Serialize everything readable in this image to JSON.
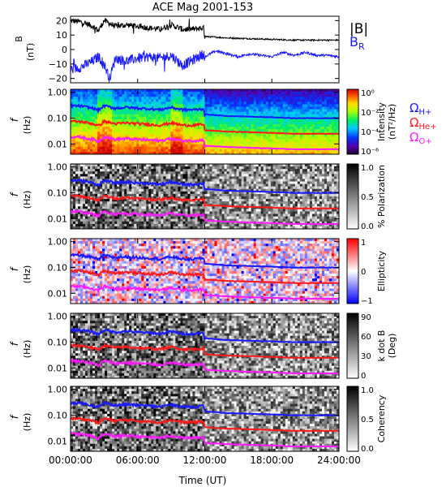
{
  "title": "ACE Mag 2001-153",
  "x_axis": {
    "label": "Time (UT)",
    "ticks": [
      "00:00:00",
      "06:00:00",
      "12:00:00",
      "18:00:00",
      "24:00:00"
    ]
  },
  "top_panel": {
    "ylabel_line1": "B",
    "ylabel_line2": "(nT)",
    "yticks": [
      "20",
      "10",
      "0",
      "−10",
      "−20"
    ],
    "legend_b": "|B|",
    "legend_br": "B",
    "legend_br_sub": "R"
  },
  "spectral_panels": [
    {
      "id": "intensity",
      "ylabel_line1": "f",
      "ylabel_line2": "(Hz)",
      "yticks": [
        "1.00",
        "0.10",
        "0.01"
      ],
      "cbar_label": "Intensity",
      "cbar_unit": "(nT²/Hz)",
      "cbar_ticks": [
        "10⁰",
        "10⁻²",
        "10⁻⁴",
        "10⁻⁶"
      ]
    },
    {
      "id": "polarization",
      "ylabel_line1": "f",
      "ylabel_line2": "(Hz)",
      "yticks": [
        "1.00",
        "0.10",
        "0.01"
      ],
      "cbar_label": "% Polarization",
      "cbar_unit": "",
      "cbar_ticks": [
        "1.0",
        "0.5",
        "0.0"
      ]
    },
    {
      "id": "ellipticity",
      "ylabel_line1": "f",
      "ylabel_line2": "(Hz)",
      "yticks": [
        "1.00",
        "0.10",
        "0.01"
      ],
      "cbar_label": "Ellipticity",
      "cbar_unit": "",
      "cbar_ticks": [
        "1",
        "0",
        "−1"
      ]
    },
    {
      "id": "kdotb",
      "ylabel_line1": "f",
      "ylabel_line2": "(Hz)",
      "yticks": [
        "1.00",
        "0.10",
        "0.01"
      ],
      "cbar_label": "k dot B",
      "cbar_unit": "(Deg)",
      "cbar_ticks": [
        "90",
        "60",
        "30",
        "0"
      ]
    },
    {
      "id": "coherency",
      "ylabel_line1": "f",
      "ylabel_line2": "(Hz)",
      "yticks": [
        "1.00",
        "0.10",
        "0.01"
      ],
      "cbar_label": "Coherency",
      "cbar_unit": "",
      "cbar_ticks": [
        "1.0",
        "0.5",
        "0.0"
      ]
    }
  ],
  "gyro_legend": [
    {
      "symbol": "Ω",
      "sub": "H+",
      "color": "#1a1aff"
    },
    {
      "symbol": "Ω",
      "sub": "He+",
      "color": "#ff1a1a"
    },
    {
      "symbol": "Ω",
      "sub": "O+",
      "color": "#ff1aff"
    }
  ],
  "colors": {
    "b_magnitude": "#000000",
    "b_radial": "#1a1aff",
    "h_plus": "#1a1aff",
    "he_plus": "#ff1a1a",
    "o_plus": "#ff1aff"
  },
  "chart_data": [
    {
      "type": "line",
      "title": "ACE Mag 2001-153",
      "xlabel": "Time (UT)",
      "ylabel": "B (nT)",
      "xlim": [
        0,
        24
      ],
      "ylim": [
        -23,
        23
      ],
      "series": [
        {
          "name": "|B|",
          "x": [
            0,
            1,
            2,
            2.5,
            3,
            4,
            5,
            6,
            7,
            8,
            9,
            10,
            11,
            11.9,
            12,
            14,
            16,
            18,
            20,
            22,
            24
          ],
          "y": [
            20,
            19,
            16,
            13,
            20,
            16,
            17,
            16,
            15,
            14,
            17,
            14,
            14,
            15,
            9,
            8,
            7.5,
            7,
            6.5,
            6.5,
            6.5
          ]
        },
        {
          "name": "B_R",
          "x": [
            0,
            1,
            2,
            2.5,
            3,
            3.5,
            4,
            5,
            6,
            7,
            8,
            9,
            10,
            11,
            11.9,
            12,
            13,
            14,
            15,
            16,
            17,
            18,
            19,
            20,
            21,
            22,
            23,
            24
          ],
          "y": [
            -14,
            -12,
            -8,
            -5,
            -10,
            -20,
            -6,
            -8,
            -6,
            -5,
            -6,
            -4,
            -11,
            -7,
            -3,
            -5,
            -1,
            -3,
            -5,
            -3,
            -4,
            -5,
            -2,
            -4,
            -2,
            -4,
            -4,
            -5
          ]
        }
      ]
    },
    {
      "type": "heatmap",
      "name": "gyrofrequency overlays (shared by the five spectral panels)",
      "x_unit": "hours UT",
      "xlim": [
        0,
        24
      ],
      "y_unit": "Hz (log scale)",
      "ylim": [
        0.004,
        1.3
      ],
      "series": [
        {
          "name": "H+",
          "x": [
            0,
            1,
            2,
            2.5,
            3,
            4,
            5,
            6,
            7,
            8,
            9,
            10,
            11,
            11.9,
            12,
            14,
            16,
            18,
            20,
            22,
            24
          ],
          "y": [
            0.3,
            0.29,
            0.24,
            0.2,
            0.3,
            0.24,
            0.26,
            0.24,
            0.23,
            0.21,
            0.26,
            0.21,
            0.21,
            0.23,
            0.14,
            0.12,
            0.114,
            0.107,
            0.099,
            0.099,
            0.099
          ]
        },
        {
          "name": "He+",
          "x": [
            0,
            1,
            2,
            2.5,
            3,
            4,
            5,
            6,
            7,
            8,
            9,
            10,
            11,
            11.9,
            12,
            14,
            16,
            18,
            20,
            22,
            24
          ],
          "y": [
            0.075,
            0.072,
            0.06,
            0.05,
            0.075,
            0.06,
            0.065,
            0.06,
            0.057,
            0.053,
            0.065,
            0.053,
            0.053,
            0.057,
            0.034,
            0.03,
            0.0285,
            0.0267,
            0.0248,
            0.0248,
            0.0248
          ]
        },
        {
          "name": "O+",
          "x": [
            0,
            1,
            2,
            2.5,
            3,
            4,
            5,
            6,
            7,
            8,
            9,
            10,
            11,
            11.9,
            12,
            14,
            16,
            18,
            20,
            22,
            24
          ],
          "y": [
            0.019,
            0.018,
            0.015,
            0.0125,
            0.019,
            0.015,
            0.016,
            0.015,
            0.0143,
            0.0133,
            0.016,
            0.0133,
            0.0133,
            0.0143,
            0.0085,
            0.0076,
            0.0071,
            0.0067,
            0.0062,
            0.0062,
            0.0062
          ]
        }
      ]
    }
  ]
}
